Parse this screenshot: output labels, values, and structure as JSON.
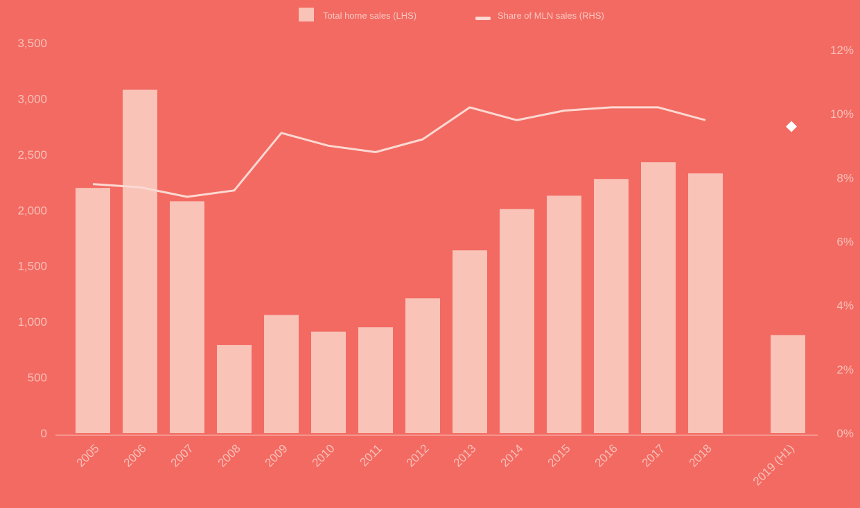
{
  "colors": {
    "background": "#f26a62",
    "bar": "#f9c3b8",
    "line": "#fbd9d2",
    "text": "#f9c0b9",
    "baseline": "#f7a59c"
  },
  "legend": {
    "bars_label": "Total home sales (LHS)",
    "line_label": "Share of MLN sales (RHS)"
  },
  "chart_data": {
    "type": "bar",
    "categories": [
      "2005",
      "2006",
      "2007",
      "2008",
      "2009",
      "2010",
      "2011",
      "2012",
      "2013",
      "2014",
      "2015",
      "2016",
      "2017",
      "2018",
      "2019 (H1)"
    ],
    "series": [
      {
        "name": "Total home sales (LHS)",
        "type": "bar",
        "axis": "left",
        "values": [
          2200,
          3080,
          2080,
          790,
          1060,
          910,
          950,
          1210,
          1640,
          2010,
          2130,
          2280,
          2430,
          2330,
          880
        ]
      },
      {
        "name": "Share of MLN sales (RHS)",
        "type": "line",
        "axis": "right",
        "values": [
          7.8,
          7.7,
          7.4,
          7.6,
          9.4,
          9.0,
          8.8,
          9.2,
          10.2,
          9.8,
          10.1,
          10.2,
          10.2,
          9.8,
          9.6
        ]
      }
    ],
    "y_left": {
      "min": 0,
      "max": 3500,
      "ticks": [
        "0",
        "500",
        "1,000",
        "1,500",
        "2,000",
        "2,500",
        "3,000",
        "3,500"
      ]
    },
    "y_right": {
      "min": 0,
      "max": 12,
      "ticks": [
        "0%",
        "2%",
        "4%",
        "6%",
        "8%",
        "10%",
        "12%"
      ]
    },
    "legend_position": "top-center",
    "grid": false
  }
}
